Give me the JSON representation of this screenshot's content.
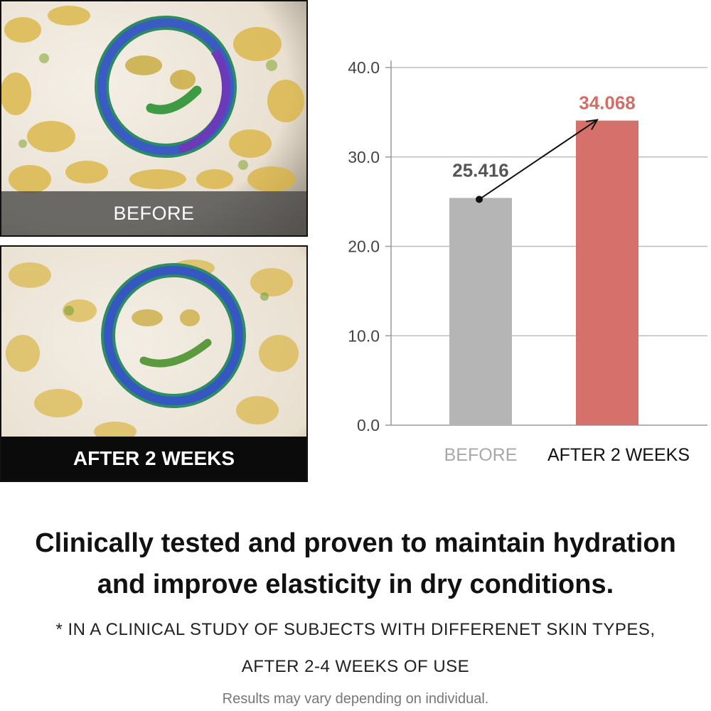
{
  "photos": {
    "before_label": "BEFORE",
    "after_label": "AFTER 2 WEEKS"
  },
  "chart_data": {
    "type": "bar",
    "categories": [
      "BEFORE",
      "AFTER 2 WEEKS"
    ],
    "values": [
      25.416,
      34.068
    ],
    "value_labels": [
      "25.416",
      "34.068"
    ],
    "bar_colors": [
      "#b5b5b5",
      "#d5716a"
    ],
    "label_colors": [
      "#555555",
      "#cf6f67"
    ],
    "category_label_colors": [
      "#a8a8a8",
      "#111111"
    ],
    "yticks": [
      "0.0",
      "10.0",
      "20.0",
      "30.0",
      "40.0"
    ],
    "ylim": [
      0,
      40
    ],
    "grid": true,
    "arrow": "from BEFORE bar to AFTER 2 WEEKS bar"
  },
  "headline": {
    "line1": "Clinically tested and proven to maintain hydration",
    "line2": "and improve elasticity in dry conditions."
  },
  "footnote": {
    "line1": "* IN A CLINICAL STUDY OF SUBJECTS WITH DIFFERENET SKIN TYPES,",
    "line2": "AFTER 2-4 WEEKS OF USE"
  },
  "disclaimer": "Results may vary depending on individual."
}
